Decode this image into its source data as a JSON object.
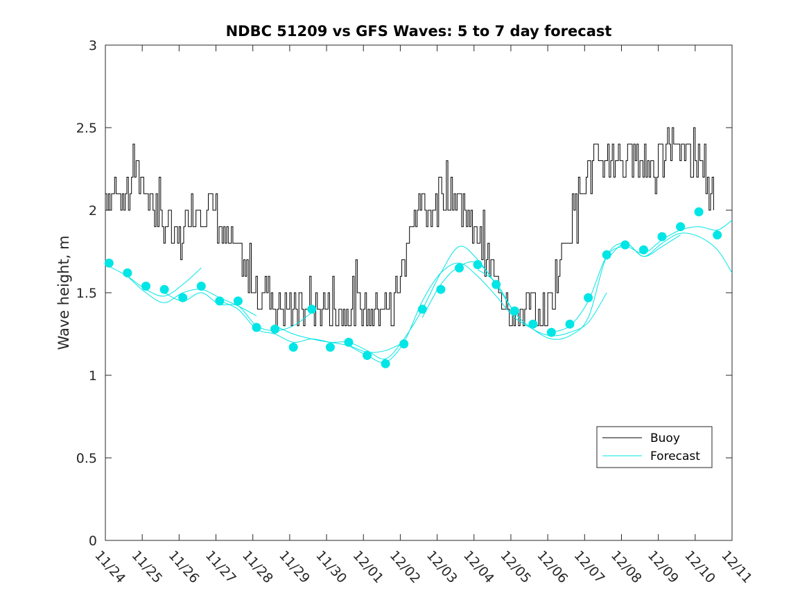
{
  "chart_data": {
    "type": "line",
    "title": "NDBC 51209 vs GFS Waves: 5 to 7 day forecast",
    "xlabel": "",
    "ylabel": "Wave height, m",
    "ylim": [
      0,
      3
    ],
    "yticks": [
      "0",
      "0.5",
      "1",
      "1.5",
      "2",
      "2.5",
      "3"
    ],
    "xlim_days": [
      0,
      17
    ],
    "xtick_labels": [
      "11/24",
      "11/25",
      "11/26",
      "11/27",
      "11/28",
      "11/29",
      "11/30",
      "12/01",
      "12/02",
      "12/03",
      "12/04",
      "12/05",
      "12/06",
      "12/07",
      "12/08",
      "12/09",
      "12/10",
      "12/11"
    ],
    "legend": {
      "location": "bottom-right",
      "entries": [
        "Buoy",
        "Forecast"
      ]
    },
    "colors": {
      "buoy": "#000000",
      "forecast": "#00e5e5",
      "axis": "#262626"
    },
    "buoy_series": {
      "name": "Buoy",
      "x_days": [
        0,
        0.25,
        0.5,
        0.75,
        1,
        1.25,
        1.5,
        1.75,
        2,
        2.25,
        2.5,
        2.75,
        3,
        3.25,
        3.5,
        3.75,
        4,
        4.25,
        4.5,
        4.75,
        5,
        5.25,
        5.5,
        5.75,
        6,
        6.25,
        6.5,
        6.75,
        7,
        7.25,
        7.5,
        7.75,
        8,
        8.25,
        8.5,
        8.75,
        9,
        9.25,
        9.5,
        9.75,
        10,
        10.25,
        10.5,
        10.75,
        11,
        11.25,
        11.5,
        11.75,
        12,
        12.25,
        12.5,
        12.75,
        13,
        13.25,
        13.5,
        13.75,
        14,
        14.25,
        14.5,
        14.75,
        15,
        15.25,
        15.5,
        15.75,
        16,
        16.25,
        16.5
      ],
      "values": [
        2.05,
        2.15,
        2.1,
        2.25,
        2.2,
        2.05,
        1.9,
        1.85,
        1.8,
        1.95,
        2.0,
        1.95,
        1.95,
        1.75,
        1.75,
        1.6,
        1.55,
        1.5,
        1.45,
        1.4,
        1.35,
        1.35,
        1.4,
        1.35,
        1.4,
        1.4,
        1.45,
        1.4,
        1.35,
        1.35,
        1.35,
        1.4,
        1.6,
        1.85,
        1.95,
        2.0,
        2.05,
        2.15,
        2.1,
        2.0,
        1.85,
        1.7,
        1.6,
        1.5,
        1.4,
        1.35,
        1.35,
        1.35,
        1.4,
        1.6,
        1.85,
        2.0,
        2.15,
        2.25,
        2.3,
        2.35,
        2.3,
        2.35,
        2.3,
        2.3,
        2.3,
        2.35,
        2.4,
        2.4,
        2.3,
        2.25,
        2.0
      ]
    },
    "forecast_runs": [
      {
        "x_days": [
          0.1,
          0.6,
          1.1,
          1.6,
          2.1,
          2.6
        ],
        "values": [
          1.66,
          1.6,
          1.52,
          1.48,
          1.55,
          1.65
        ]
      },
      {
        "x_days": [
          0.6,
          1.1,
          1.6,
          2.1,
          2.6,
          3.1,
          3.6,
          4.1
        ],
        "values": [
          1.6,
          1.5,
          1.44,
          1.5,
          1.52,
          1.47,
          1.42,
          1.36
        ]
      },
      {
        "x_days": [
          1.6,
          2.1,
          2.6,
          3.1,
          3.6,
          4.1,
          4.6,
          5.1,
          5.6
        ],
        "values": [
          1.5,
          1.45,
          1.5,
          1.43,
          1.42,
          1.3,
          1.27,
          1.3,
          1.38
        ]
      },
      {
        "x_days": [
          3.1,
          3.6,
          4.1,
          4.6,
          5.1,
          5.6,
          6.1,
          6.6,
          7.1,
          7.6,
          8.1
        ],
        "values": [
          1.45,
          1.4,
          1.28,
          1.25,
          1.2,
          1.22,
          1.2,
          1.18,
          1.14,
          1.15,
          1.2
        ]
      },
      {
        "x_days": [
          4.6,
          5.1,
          5.6,
          6.1,
          6.6,
          7.1,
          7.6,
          8.1,
          8.6,
          9.1,
          9.6,
          10.1,
          10.6
        ],
        "values": [
          1.3,
          1.25,
          1.22,
          1.2,
          1.2,
          1.15,
          1.1,
          1.22,
          1.4,
          1.62,
          1.78,
          1.7,
          1.55
        ]
      },
      {
        "x_days": [
          6.6,
          7.1,
          7.6,
          8.1,
          8.6,
          9.1,
          9.6,
          10.1,
          10.6,
          11.1,
          11.6
        ],
        "values": [
          1.18,
          1.12,
          1.08,
          1.2,
          1.45,
          1.62,
          1.68,
          1.6,
          1.48,
          1.35,
          1.28
        ]
      },
      {
        "x_days": [
          8.6,
          9.1,
          9.6,
          10.1,
          10.6,
          11.1,
          11.6,
          12.1,
          12.6,
          13.1,
          13.6
        ],
        "values": [
          1.35,
          1.55,
          1.66,
          1.68,
          1.55,
          1.38,
          1.28,
          1.24,
          1.26,
          1.32,
          1.5
        ]
      },
      {
        "x_days": [
          10.1,
          10.6,
          11.1,
          11.6,
          12.1,
          12.6,
          13.1,
          13.6,
          14.1,
          14.6,
          15.1,
          15.6
        ],
        "values": [
          1.64,
          1.56,
          1.38,
          1.28,
          1.22,
          1.24,
          1.35,
          1.72,
          1.8,
          1.72,
          1.78,
          1.85
        ]
      },
      {
        "x_days": [
          12.1,
          12.6,
          13.1,
          13.6,
          14.1,
          14.6,
          15.1,
          15.6,
          16.1,
          16.6,
          17.0
        ],
        "values": [
          1.26,
          1.3,
          1.45,
          1.72,
          1.78,
          1.74,
          1.82,
          1.88,
          1.9,
          1.88,
          1.94
        ]
      },
      {
        "x_days": [
          13.6,
          14.1,
          14.6,
          15.1,
          15.6,
          16.1,
          16.6,
          17.0
        ],
        "values": [
          1.7,
          1.8,
          1.72,
          1.8,
          1.86,
          1.84,
          1.76,
          1.62
        ]
      }
    ],
    "forecast_markers": {
      "name": "Forecast",
      "x_days": [
        0.1,
        0.6,
        1.1,
        1.6,
        2.1,
        2.6,
        3.1,
        3.6,
        4.1,
        4.6,
        5.1,
        5.6,
        6.1,
        6.6,
        7.1,
        7.6,
        8.1,
        8.6,
        9.1,
        9.6,
        10.1,
        10.6,
        11.1,
        11.6,
        12.1,
        12.6,
        13.1,
        13.6,
        14.1,
        14.6,
        15.1,
        15.6,
        16.1,
        16.6
      ],
      "values": [
        1.68,
        1.62,
        1.54,
        1.52,
        1.47,
        1.54,
        1.45,
        1.45,
        1.29,
        1.28,
        1.17,
        1.4,
        1.17,
        1.2,
        1.12,
        1.07,
        1.19,
        1.4,
        1.52,
        1.65,
        1.67,
        1.55,
        1.39,
        1.31,
        1.26,
        1.31,
        1.47,
        1.73,
        1.79,
        1.76,
        1.84,
        1.9,
        1.99,
        1.85
      ]
    }
  }
}
